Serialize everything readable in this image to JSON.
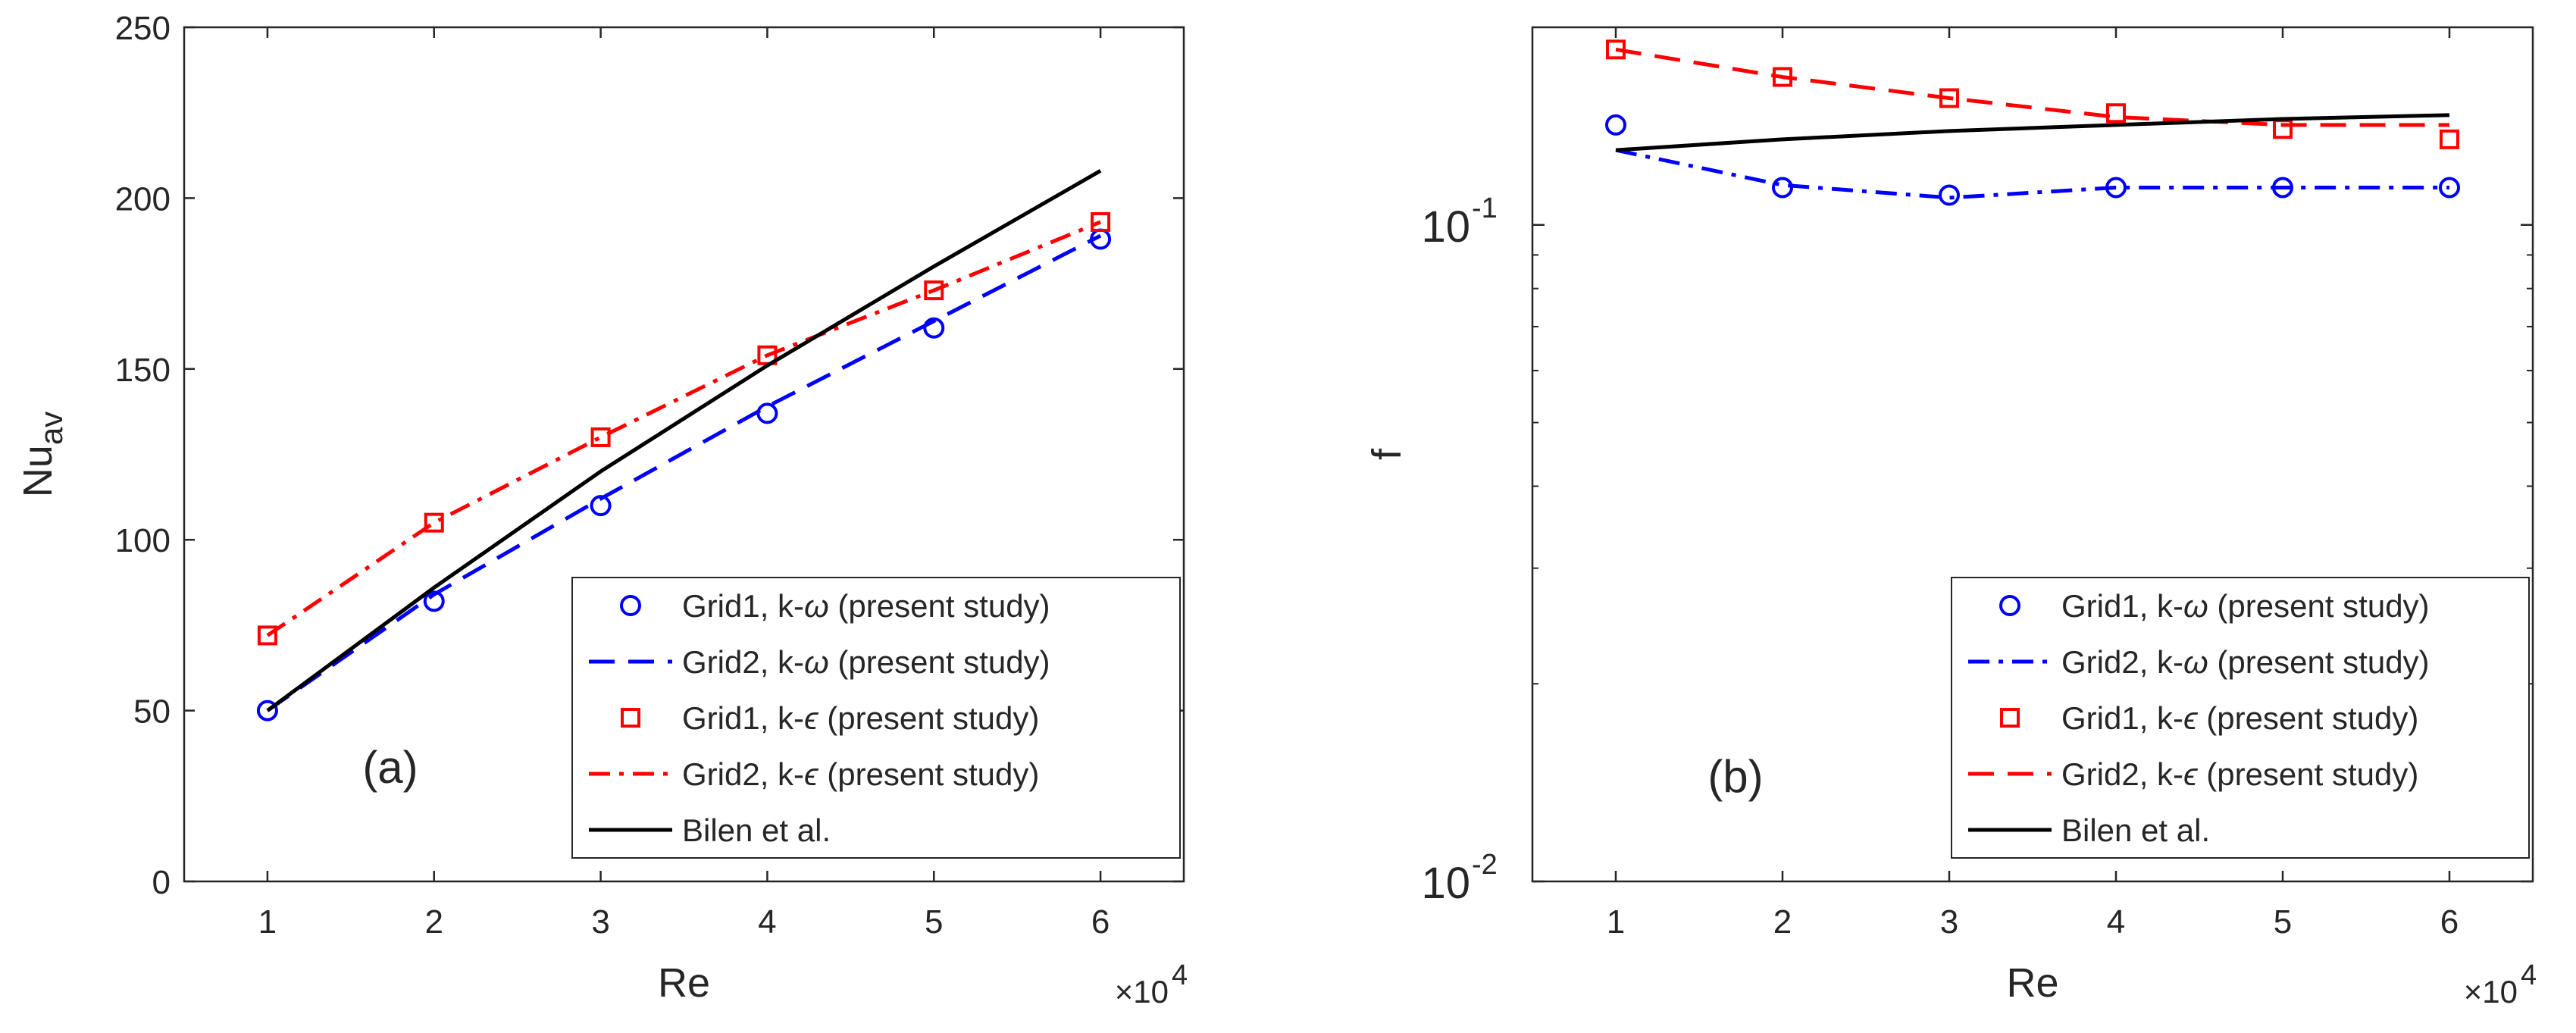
{
  "chart_data": [
    {
      "type": "line",
      "panel_tag": "(a)",
      "xlabel": "Re",
      "ylabel_main": "Nu",
      "ylabel_sub": "av",
      "x_multiplier": "×10",
      "x_multiplier_exp": "4",
      "xlim": [
        0.5,
        6.5
      ],
      "ylim": [
        0,
        250
      ],
      "yscale": "linear",
      "xticks": [
        1,
        2,
        3,
        4,
        5,
        6
      ],
      "yticks": [
        0,
        50,
        100,
        150,
        200,
        250
      ],
      "grid": false,
      "legend_position": "bottom-right",
      "series": [
        {
          "name": "Grid1, k-",
          "greek": "ω",
          "suffix": " (present study)",
          "style": "marker-circle",
          "color": "#0000ff",
          "x": [
            1,
            2,
            3,
            4,
            5,
            6
          ],
          "y": [
            50,
            82,
            110,
            137,
            162,
            188
          ]
        },
        {
          "name": "Grid2, k-",
          "greek": "ω",
          "suffix": " (present study)",
          "style": "dashed",
          "color": "#0000ff",
          "x": [
            1,
            2,
            3,
            4,
            5,
            6
          ],
          "y": [
            50,
            84,
            112,
            139,
            164,
            189
          ]
        },
        {
          "name": "Grid1, k-",
          "greek": "ϵ",
          "suffix": " (present study)",
          "style": "marker-square",
          "color": "#ff0000",
          "x": [
            1,
            2,
            3,
            4,
            5,
            6
          ],
          "y": [
            72,
            105,
            130,
            154,
            173,
            193
          ]
        },
        {
          "name": "Grid2, k-",
          "greek": "ϵ",
          "suffix": " (present study)",
          "style": "dashdot",
          "color": "#ff0000",
          "x": [
            1,
            2,
            3,
            4,
            5,
            6
          ],
          "y": [
            72,
            105,
            130,
            154,
            173,
            193
          ]
        },
        {
          "name": "Bilen et al.",
          "greek": "",
          "suffix": "",
          "style": "solid",
          "color": "#000000",
          "x": [
            1,
            2,
            3,
            4,
            5,
            6
          ],
          "y": [
            50,
            86,
            120,
            151,
            180,
            208
          ]
        }
      ]
    },
    {
      "type": "line",
      "panel_tag": "(b)",
      "xlabel": "Re",
      "ylabel_main": "f",
      "ylabel_sub": "",
      "x_multiplier": "×10",
      "x_multiplier_exp": "4",
      "xlim": [
        0.5,
        6.5
      ],
      "ylim": [
        0.01,
        0.2
      ],
      "yscale": "log",
      "xticks": [
        1,
        2,
        3,
        4,
        5,
        6
      ],
      "yticks": [
        {
          "value": 0.01,
          "base": "10",
          "exp": "-2"
        },
        {
          "value": 0.1,
          "base": "10",
          "exp": "-1"
        }
      ],
      "grid": false,
      "legend_position": "bottom-right",
      "series": [
        {
          "name": "Grid1, k-",
          "greek": "ω",
          "suffix": " (present study)",
          "style": "marker-circle",
          "color": "#0000ff",
          "x": [
            1,
            2,
            3,
            4,
            5,
            6
          ],
          "y": [
            0.142,
            0.114,
            0.111,
            0.114,
            0.114,
            0.114
          ]
        },
        {
          "name": "Grid2, k-",
          "greek": "ω",
          "suffix": " (present study)",
          "style": "dashdot",
          "color": "#0000ff",
          "x": [
            1,
            2,
            3,
            4,
            5,
            6
          ],
          "y": [
            0.13,
            0.115,
            0.11,
            0.114,
            0.114,
            0.114
          ]
        },
        {
          "name": "Grid1, k-",
          "greek": "ϵ",
          "suffix": " (present study)",
          "style": "marker-square",
          "color": "#ff0000",
          "x": [
            1,
            2,
            3,
            4,
            5,
            6
          ],
          "y": [
            0.185,
            0.168,
            0.156,
            0.148,
            0.14,
            0.135
          ]
        },
        {
          "name": "Grid2, k-",
          "greek": "ϵ",
          "suffix": " (present study)",
          "style": "dashed",
          "color": "#ff0000",
          "x": [
            1,
            2,
            3,
            4,
            5,
            6
          ],
          "y": [
            0.185,
            0.168,
            0.156,
            0.146,
            0.142,
            0.142
          ]
        },
        {
          "name": "Bilen et al.",
          "greek": "",
          "suffix": "",
          "style": "solid",
          "color": "#000000",
          "x": [
            1,
            2,
            3,
            4,
            5,
            6
          ],
          "y": [
            0.13,
            0.135,
            0.139,
            0.142,
            0.145,
            0.147
          ]
        }
      ]
    }
  ]
}
